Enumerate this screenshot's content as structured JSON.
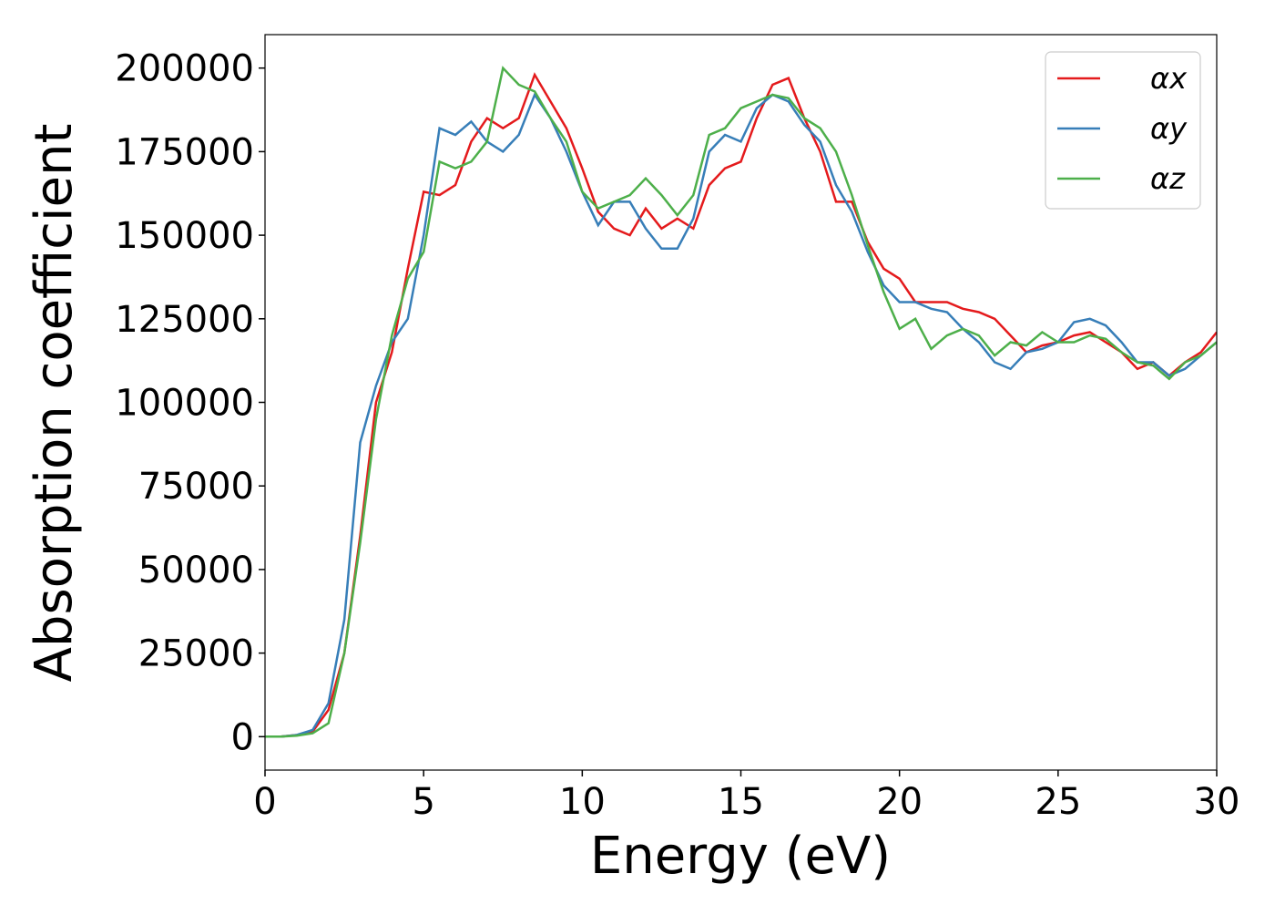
{
  "chart_data": {
    "type": "line",
    "xlabel": "Energy (eV)",
    "ylabel": "Absorption coefficient",
    "x": [
      0,
      0.5,
      1,
      1.5,
      2,
      2.5,
      3,
      3.5,
      4,
      4.5,
      5,
      5.5,
      6,
      6.5,
      7,
      7.5,
      8,
      8.5,
      9,
      9.5,
      10,
      10.5,
      11,
      11.5,
      12,
      12.5,
      13,
      13.5,
      14,
      14.5,
      15,
      15.5,
      16,
      16.5,
      17,
      17.5,
      18,
      18.5,
      19,
      19.5,
      20,
      20.5,
      21,
      21.5,
      22,
      22.5,
      23,
      23.5,
      24,
      24.5,
      25,
      25.5,
      26,
      26.5,
      27,
      27.5,
      28,
      28.5,
      29,
      29.5,
      30
    ],
    "series": [
      {
        "name": "αx",
        "color": "#e41a1c",
        "values": [
          0,
          0,
          500,
          1500,
          8000,
          25000,
          60000,
          100000,
          115000,
          140000,
          163000,
          162000,
          165000,
          178000,
          185000,
          182000,
          185000,
          198000,
          190000,
          182000,
          170000,
          157000,
          152000,
          150000,
          158000,
          152000,
          155000,
          152000,
          165000,
          170000,
          172000,
          185000,
          195000,
          197000,
          185000,
          175000,
          160000,
          160000,
          148000,
          140000,
          137000,
          130000,
          130000,
          130000,
          128000,
          127000,
          125000,
          120000,
          115000,
          117000,
          118000,
          120000,
          121000,
          118000,
          115000,
          110000,
          112000,
          108000,
          112000,
          115000,
          121000
        ]
      },
      {
        "name": "αy",
        "color": "#377eb8",
        "values": [
          0,
          0,
          500,
          2000,
          10000,
          35000,
          88000,
          105000,
          118000,
          125000,
          150000,
          182000,
          180000,
          184000,
          178000,
          175000,
          180000,
          192000,
          185000,
          175000,
          163000,
          153000,
          160000,
          160000,
          152000,
          146000,
          146000,
          155000,
          175000,
          180000,
          178000,
          188000,
          192000,
          190000,
          183000,
          178000,
          165000,
          157000,
          145000,
          135000,
          130000,
          130000,
          128000,
          127000,
          122000,
          118000,
          112000,
          110000,
          115000,
          116000,
          118000,
          124000,
          125000,
          123000,
          118000,
          112000,
          112000,
          108000,
          110000,
          114000,
          118000
        ]
      },
      {
        "name": "αz",
        "color": "#4daf4a",
        "values": [
          0,
          0,
          300,
          1000,
          4000,
          25000,
          58000,
          95000,
          120000,
          137000,
          145000,
          172000,
          170000,
          172000,
          178000,
          200000,
          195000,
          193000,
          185000,
          178000,
          163000,
          158000,
          160000,
          162000,
          167000,
          162000,
          156000,
          162000,
          180000,
          182000,
          188000,
          190000,
          192000,
          191000,
          185000,
          182000,
          175000,
          162000,
          147000,
          133000,
          122000,
          125000,
          116000,
          120000,
          122000,
          120000,
          114000,
          118000,
          117000,
          121000,
          118000,
          118000,
          120000,
          119000,
          115000,
          112000,
          111000,
          107000,
          112000,
          114000,
          118000
        ]
      }
    ],
    "xlim": [
      0,
      30
    ],
    "xticks": [
      0,
      5,
      10,
      15,
      20,
      25,
      30
    ],
    "ylim": [
      -10000,
      210000
    ],
    "yticks": [
      0,
      25000,
      50000,
      75000,
      100000,
      125000,
      150000,
      175000,
      200000
    ],
    "grid": false,
    "legend": "upper right"
  }
}
